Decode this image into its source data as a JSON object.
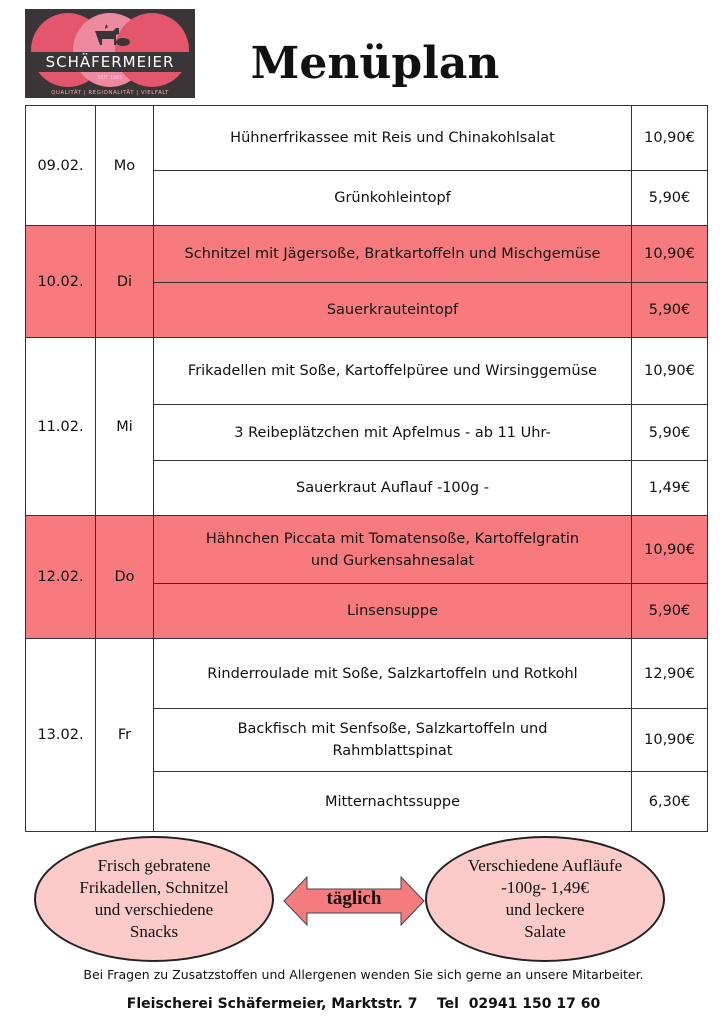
{
  "logo": {
    "brand": "SCHÄFERMEIER",
    "since": "SEIT 1965",
    "tagline": "QUALITÄT | REGIONALITÄT | VIELFALT"
  },
  "title": "Menüplan",
  "days": [
    {
      "date": "09.02.",
      "day": "Mo",
      "highlight": false,
      "items": [
        {
          "dish": "Hühnerfrikassee mit Reis und Chinakohlsalat",
          "price": "10,90€"
        },
        {
          "dish": "Grünkohleintopf",
          "price": "5,90€"
        }
      ]
    },
    {
      "date": "10.02.",
      "day": "Di",
      "highlight": true,
      "items": [
        {
          "dish": "Schnitzel mit Jägersoße, Bratkartoffeln und Mischgemüse",
          "price": "10,90€"
        },
        {
          "dish": "Sauerkrauteintopf",
          "price": "5,90€"
        }
      ]
    },
    {
      "date": "11.02.",
      "day": "Mi",
      "highlight": false,
      "items": [
        {
          "dish": "Frikadellen mit Soße, Kartoffelpüree und Wirsinggemüse",
          "price": "10,90€"
        },
        {
          "dish": "3 Reibeplätzchen mit Apfelmus - ab 11 Uhr-",
          "price": "5,90€"
        },
        {
          "dish": "Sauerkraut Auflauf  -100g -",
          "price": "1,49€"
        }
      ]
    },
    {
      "date": "12.02.",
      "day": "Do",
      "highlight": true,
      "items": [
        {
          "dish": "Hähnchen Piccata mit Tomatensoße, Kartoffelgratin\nund Gurkensahnesalat",
          "price": "10,90€"
        },
        {
          "dish": "Linsensuppe",
          "price": "5,90€"
        }
      ]
    },
    {
      "date": "13.02.",
      "day": "Fr",
      "highlight": false,
      "items": [
        {
          "dish": "Rinderroulade mit Soße, Salzkartoffeln und Rotkohl",
          "price": "12,90€"
        },
        {
          "dish": "Backfisch mit Senfsoße, Salzkartoffeln und\nRahmblattspinat",
          "price": "10,90€"
        },
        {
          "dish": "Mitternachtssuppe",
          "price": "6,30€"
        }
      ]
    }
  ],
  "specials": {
    "left": [
      "Frisch gebratene",
      "Frikadellen, Schnitzel",
      "und verschiedene",
      "Snacks"
    ],
    "arrow": "täglich",
    "right": [
      "Verschiedene Aufläufe",
      "-100g- 1,49€",
      "und leckere",
      "Salate"
    ]
  },
  "note": "Bei Fragen zu Zusatzstoffen und Allergenen wenden Sie sich gerne an unsere Mitarbeiter.",
  "footer": "Fleischerei Schäfermeier, Marktstr. 7    Tel  02941 150 17 60",
  "colors": {
    "highlight": "#f77b7e",
    "oval": "#fdcaca",
    "logo_bg": "#3a3536",
    "logo_circle": "#e85a6e"
  }
}
